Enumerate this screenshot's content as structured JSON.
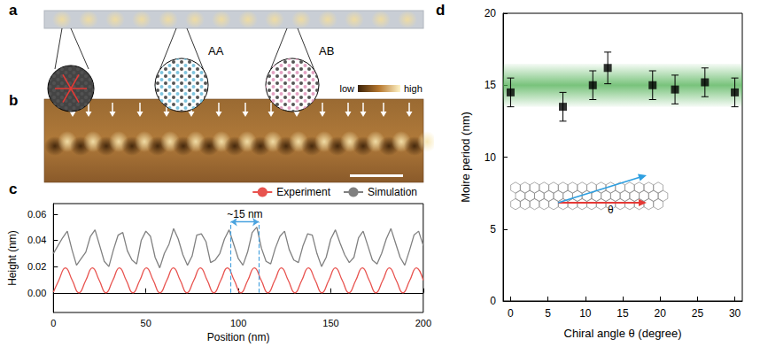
{
  "panel_labels": [
    "a",
    "b",
    "c",
    "d"
  ],
  "panel_a": {
    "labels": [
      "AA",
      "AB"
    ]
  },
  "panel_b": {
    "colorbar": [
      "low",
      "high"
    ]
  },
  "chart_data": [
    {
      "type": "line",
      "xlabel": "Position (nm)",
      "ylabel": "Height (nm)",
      "xlim": [
        0,
        200
      ],
      "xticks": [
        0,
        50,
        100,
        150,
        200
      ],
      "ylim": [
        -0.015,
        0.068
      ],
      "yticks": [
        {
          "value": 0,
          "label": "0.00"
        },
        {
          "value": 0.02,
          "label": "0.02"
        },
        {
          "value": 0.04,
          "label": "0.04"
        },
        {
          "value": 0.06,
          "label": "0.06"
        }
      ],
      "grid": false,
      "legend": "upper right",
      "series": [
        {
          "name": "Experiment",
          "color": "#e8534f",
          "x": [
            0,
            2.9,
            6.5,
            10.2,
            13.8,
            17.5,
            21.1,
            24.8,
            28.4,
            32.1,
            35.7,
            39.4,
            43.0,
            46.7,
            50.3,
            54.0,
            57.6,
            61.3,
            64.9,
            68.6,
            72.2,
            75.9,
            79.5,
            83.2,
            86.8,
            90.5,
            94.1,
            97.8,
            101.4,
            105.1,
            108.7,
            112.4,
            116.0,
            119.7,
            123.3,
            127.0,
            130.6,
            134.3,
            137.9,
            141.6,
            145.2,
            148.9,
            152.5,
            156.2,
            159.8,
            163.5,
            167.1,
            170.8,
            174.4,
            178.1,
            181.7,
            185.4,
            189.0,
            192.7,
            196.3,
            200.0
          ],
          "values": [
            0.0005,
            0.0095,
            0.019,
            0.0095,
            0,
            0.0095,
            0.019,
            0.0095,
            0,
            0.0095,
            0.019,
            0.0095,
            0,
            0.0095,
            0.019,
            0.0095,
            0,
            0.0095,
            0.019,
            0.0095,
            0,
            0.0095,
            0.019,
            0.0095,
            0,
            0.0095,
            0.019,
            0.0095,
            0,
            0.0095,
            0.019,
            0.0095,
            0,
            0.0095,
            0.019,
            0.0095,
            0,
            0.0095,
            0.019,
            0.0095,
            0,
            0.0095,
            0.019,
            0.0095,
            0,
            0.0095,
            0.019,
            0.0095,
            0,
            0.0095,
            0.019,
            0.0095,
            0,
            0.0095,
            0.019,
            0.0095
          ]
        },
        {
          "name": "Simulation",
          "color": "#808080",
          "x": [
            0,
            2.5,
            5,
            7.5,
            10,
            12.5,
            15,
            17.5,
            20,
            22.5,
            25,
            27.5,
            30,
            32.5,
            35,
            37.5,
            40,
            42.5,
            45,
            47.5,
            50,
            52.5,
            55,
            57.5,
            60,
            62.5,
            65,
            67.5,
            70,
            72.5,
            75,
            77.5,
            80,
            82.5,
            85,
            87.5,
            90,
            92.5,
            95,
            97.5,
            100,
            102.5,
            105,
            107.5,
            110,
            112.5,
            115,
            117.5,
            120,
            122.5,
            125,
            127.5,
            130,
            132.5,
            135,
            137.5,
            140,
            142.5,
            145,
            147.5,
            150,
            152.5,
            155,
            157.5,
            160,
            162.5,
            165,
            167.5,
            170,
            172.5,
            175,
            177.5,
            180,
            182.5,
            185,
            187.5,
            190,
            192.5,
            195,
            197.5,
            200
          ],
          "values": [
            0.03,
            0.036,
            0.042,
            0.047,
            0.033,
            0.021,
            0.026,
            0.031,
            0.043,
            0.048,
            0.036,
            0.024,
            0.02,
            0.033,
            0.044,
            0.046,
            0.032,
            0.025,
            0.022,
            0.04,
            0.047,
            0.043,
            0.027,
            0.019,
            0.03,
            0.037,
            0.049,
            0.041,
            0.029,
            0.021,
            0.028,
            0.044,
            0.045,
            0.039,
            0.023,
            0.025,
            0.03,
            0.041,
            0.048,
            0.037,
            0.026,
            0.021,
            0.031,
            0.046,
            0.05,
            0.034,
            0.024,
            0.022,
            0.034,
            0.043,
            0.047,
            0.033,
            0.025,
            0.023,
            0.036,
            0.045,
            0.044,
            0.03,
            0.02,
            0.027,
            0.041,
            0.048,
            0.038,
            0.029,
            0.023,
            0.027,
            0.042,
            0.047,
            0.036,
            0.025,
            0.022,
            0.03,
            0.041,
            0.049,
            0.038,
            0.027,
            0.021,
            0.032,
            0.044,
            0.047,
            0.036
          ]
        }
      ],
      "annotation": {
        "text": "~15 nm",
        "x": [
          96,
          111
        ],
        "y": 0.054,
        "y_bottom": 0,
        "color": "#4aa3df"
      }
    },
    {
      "type": "scatter",
      "xlabel": "Chiral angle θ (degree)",
      "ylabel": "Moire period (nm)",
      "xlim": [
        -1,
        31
      ],
      "xticks": [
        0,
        5,
        10,
        15,
        20,
        25,
        30
      ],
      "ylim": [
        0,
        20
      ],
      "yticks": [
        0,
        5,
        10,
        15,
        20
      ],
      "grid": false,
      "color": "#000000",
      "marker": "square",
      "x": [
        0,
        7,
        11,
        13,
        19,
        22,
        26,
        30
      ],
      "values": [
        14.5,
        13.5,
        15.0,
        16.2,
        15.0,
        14.7,
        15.2,
        14.5
      ],
      "errors": [
        1.0,
        1.0,
        1.0,
        1.1,
        1.0,
        1.0,
        1.0,
        1.0
      ],
      "band": {
        "lower": 13.5,
        "upper": 16.5,
        "color": "#4caf50"
      },
      "annotation": "θ"
    }
  ]
}
